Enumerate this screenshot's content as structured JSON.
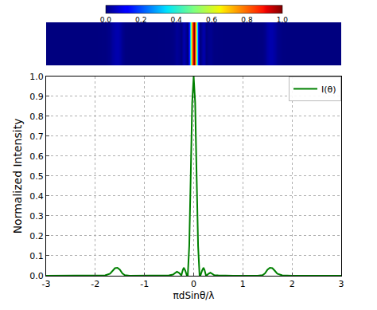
{
  "chart_data": {
    "type": "line",
    "x": [
      -3,
      -2.5,
      -2,
      -1.8,
      -1.7,
      -1.65,
      -1.6,
      -1.55,
      -1.5,
      -1.45,
      -1.4,
      -1.3,
      -0.8,
      -0.5,
      -0.42,
      -0.38,
      -0.34,
      -0.3,
      -0.27,
      -0.25,
      -0.22,
      -0.2,
      -0.17,
      -0.14,
      -0.12,
      -0.09,
      -0.06,
      -0.03,
      0,
      0.03,
      0.06,
      0.09,
      0.12,
      0.14,
      0.17,
      0.2,
      0.22,
      0.25,
      0.27,
      0.3,
      0.34,
      0.38,
      0.42,
      0.5,
      0.8,
      1.3,
      1.4,
      1.45,
      1.5,
      1.55,
      1.6,
      1.65,
      1.7,
      1.8,
      2,
      2.5,
      3
    ],
    "series": [
      {
        "name": "I(θ)",
        "color": "#008000",
        "values": [
          0,
          0,
          0,
          0.002,
          0.01,
          0.025,
          0.038,
          0.04,
          0.03,
          0.012,
          0.003,
          0,
          0,
          0.002,
          0.006,
          0.012,
          0.02,
          0.015,
          0.004,
          0.002,
          0.03,
          0.04,
          0.025,
          0.003,
          0,
          0.15,
          0.5,
          0.87,
          1.0,
          0.87,
          0.5,
          0.15,
          0,
          0.003,
          0.025,
          0.04,
          0.03,
          0.002,
          0.003,
          0.01,
          0.015,
          0.008,
          0.003,
          0.002,
          0,
          0,
          0.003,
          0.012,
          0.03,
          0.04,
          0.038,
          0.025,
          0.01,
          0.002,
          0,
          0,
          0
        ]
      }
    ],
    "xlabel": "πdSinθ/λ",
    "ylabel": "Normalized Intensity",
    "xlim": [
      -3,
      3
    ],
    "xticks": [
      -3,
      -2,
      -1,
      0,
      1,
      2,
      3
    ],
    "ylim": [
      0,
      1
    ],
    "yticks": [
      {
        "value": 0,
        "label": "0.0"
      },
      {
        "value": 0.1,
        "label": "0.1"
      },
      {
        "value": 0.2,
        "label": "0.2"
      },
      {
        "value": 0.3,
        "label": "0.3"
      },
      {
        "value": 0.4,
        "label": "0.4"
      },
      {
        "value": 0.5,
        "label": "0.5"
      },
      {
        "value": 0.6,
        "label": "0.6"
      },
      {
        "value": 0.7,
        "label": "0.7"
      },
      {
        "value": 0.8,
        "label": "0.8"
      },
      {
        "value": 0.9,
        "label": "0.9"
      },
      {
        "value": 1,
        "label": "1.0"
      }
    ],
    "grid": true,
    "legend": "upper right",
    "heatmap": {
      "type": "heatmap",
      "color": "jet",
      "zlim": [
        0,
        1
      ],
      "zticks": [
        {
          "value": 0,
          "label": "0.0"
        },
        {
          "value": 0.2,
          "label": "0.2"
        },
        {
          "value": 0.4,
          "label": "0.4"
        },
        {
          "value": 0.6,
          "label": "0.6"
        },
        {
          "value": 0.8,
          "label": "0.8"
        },
        {
          "value": 1,
          "label": "1.0"
        }
      ]
    }
  }
}
